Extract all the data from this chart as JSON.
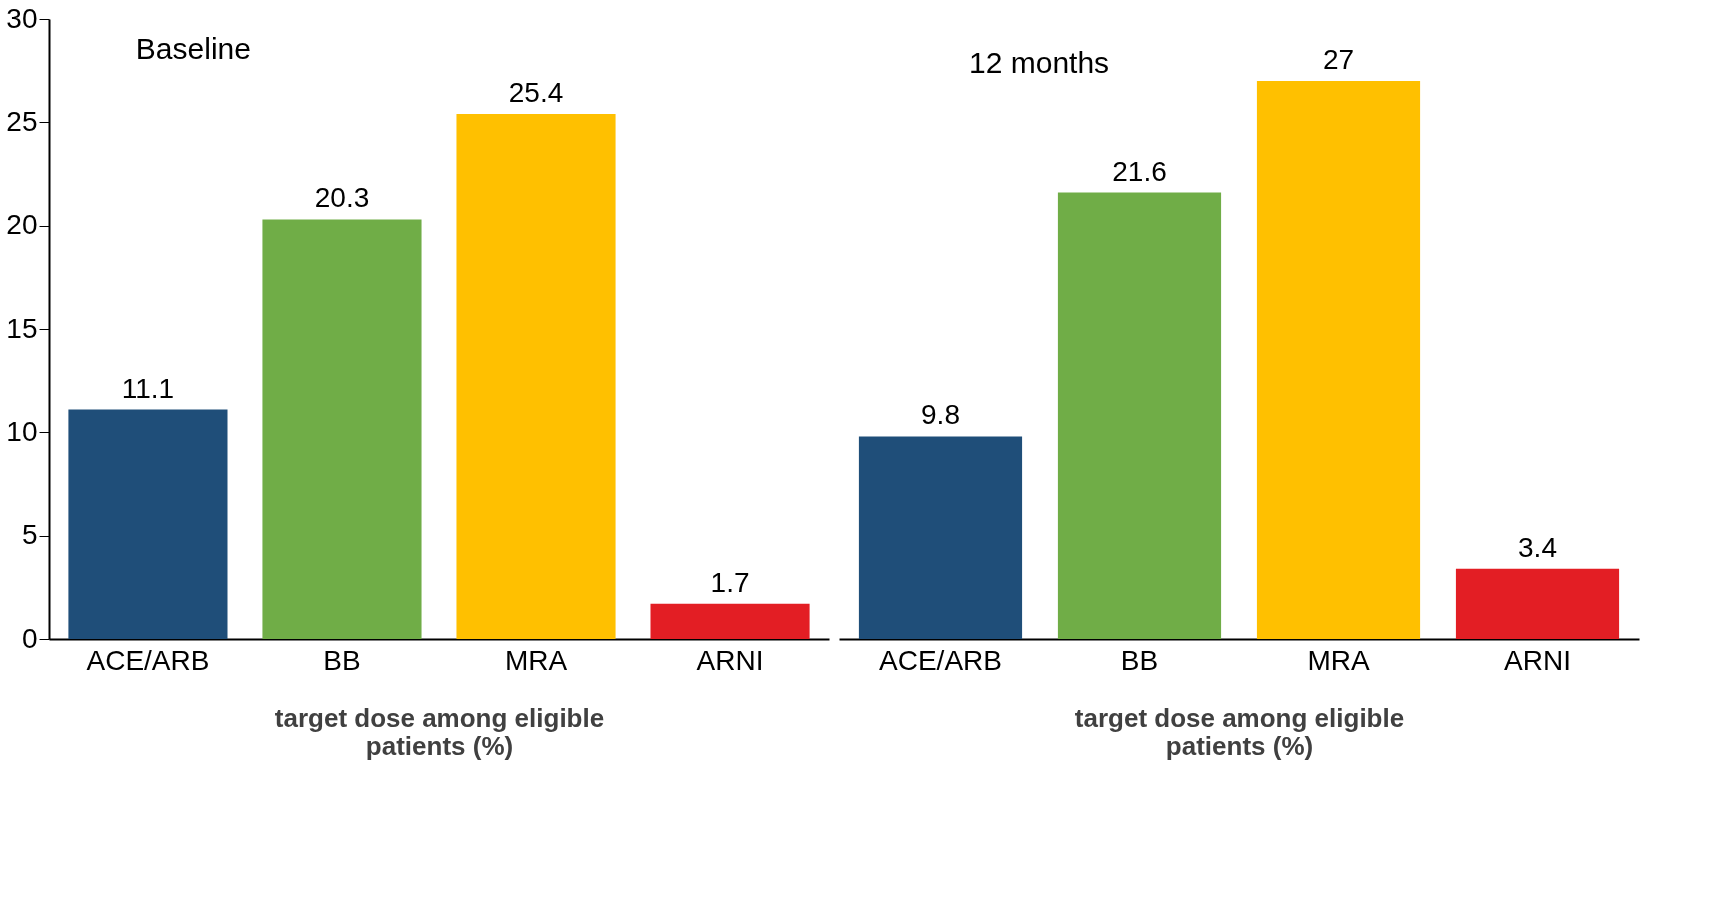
{
  "chart_data": [
    {
      "type": "bar",
      "title": "Baseline",
      "xlabel": "target dose among eligible patients (%)",
      "categories": [
        "ACE/ARB",
        "BB",
        "MRA",
        "ARNI"
      ],
      "values": [
        11.1,
        20.3,
        25.4,
        1.7
      ],
      "colors": [
        "#1f4e79",
        "#70ad47",
        "#ffc000",
        "#e31e24"
      ],
      "ylim": [
        0,
        30
      ],
      "yticks": [
        0,
        5,
        10,
        15,
        20,
        25,
        30
      ],
      "data_labels": true,
      "grid": false
    },
    {
      "type": "bar",
      "title": "12 months",
      "xlabel": "target dose among eligible patients (%)",
      "categories": [
        "ACE/ARB",
        "BB",
        "MRA",
        "ARNI"
      ],
      "values": [
        9.8,
        21.6,
        27,
        3.4
      ],
      "colors": [
        "#1f4e79",
        "#70ad47",
        "#ffc000",
        "#e31e24"
      ],
      "ylim": [
        0,
        30
      ],
      "yticks": [
        0,
        5,
        10,
        15,
        20,
        25,
        30
      ],
      "data_labels": true,
      "grid": false,
      "tick_labels": "x"
    }
  ]
}
